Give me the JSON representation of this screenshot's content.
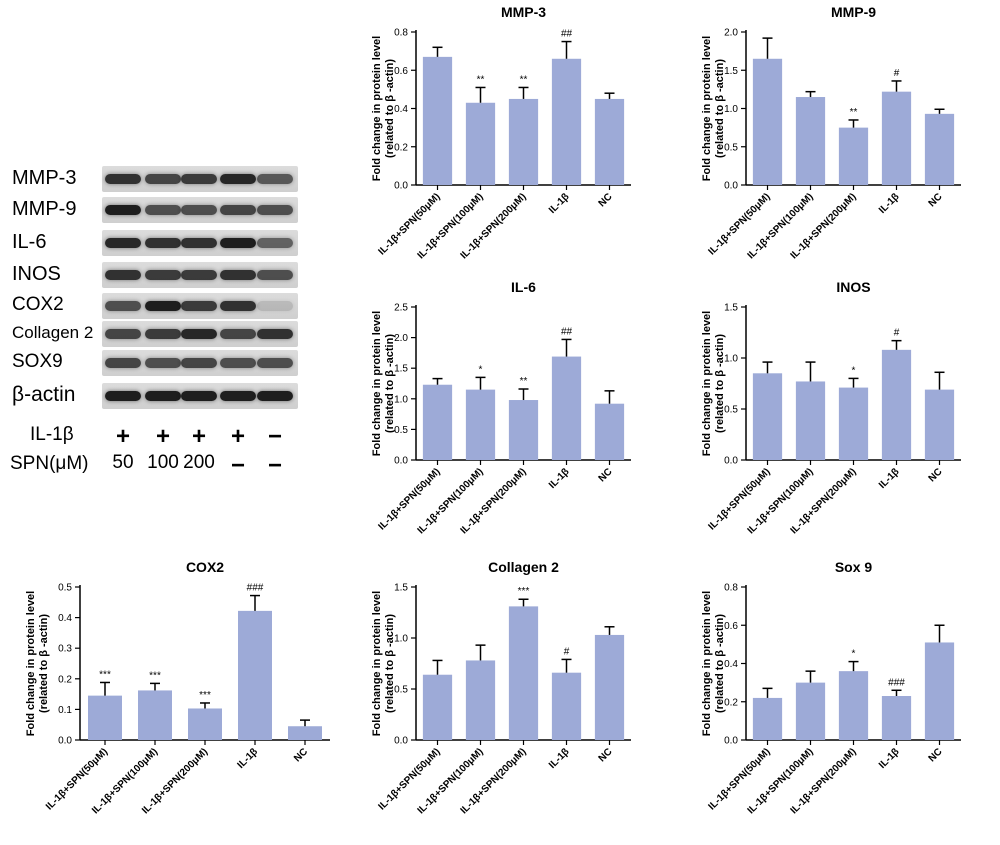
{
  "blot": {
    "proteins": [
      "MMP-3",
      "MMP-9",
      "IL-6",
      "INOS",
      "COX2",
      "Collagen 2",
      "SOX9",
      "β-actin"
    ],
    "treatment_rows": [
      {
        "label": "IL-1β",
        "values": [
          "+",
          "+",
          "+",
          "+",
          "−"
        ]
      },
      {
        "label": "SPN(μM)",
        "values": [
          "50",
          "100",
          "200",
          "−",
          "−"
        ]
      }
    ]
  },
  "colors": {
    "bar": "#9daad7",
    "text": "#000000"
  },
  "chart_data": [
    {
      "type": "bar",
      "title": "MMP-3",
      "ylabel": "Fold change in protein level\n(related to β -actin)",
      "ylim": [
        0,
        0.8
      ],
      "yticks": [
        "0.0",
        "0.2",
        "0.4",
        "0.6",
        "0.8"
      ],
      "categories": [
        "IL-1β+SPN(50μM)",
        "IL-1β+SPN(100μM)",
        "IL-1β+SPN(200μM)",
        "IL-1β",
        "NC"
      ],
      "values": [
        0.67,
        0.43,
        0.45,
        0.66,
        0.45
      ],
      "errors": [
        0.05,
        0.08,
        0.06,
        0.09,
        0.03
      ],
      "annotations": [
        "",
        "**",
        "**",
        "##",
        ""
      ]
    },
    {
      "type": "bar",
      "title": "MMP-9",
      "ylabel": "Fold change in protein level\n(related to β -actin)",
      "ylim": [
        0,
        2.0
      ],
      "yticks": [
        "0.0",
        "0.5",
        "1.0",
        "1.5",
        "2.0"
      ],
      "categories": [
        "IL-1β+SPN(50μM)",
        "IL-1β+SPN(100μM)",
        "IL-1β+SPN(200μM)",
        "IL-1β",
        "NC"
      ],
      "values": [
        1.65,
        1.15,
        0.75,
        1.22,
        0.93
      ],
      "errors": [
        0.27,
        0.07,
        0.1,
        0.14,
        0.06
      ],
      "annotations": [
        "",
        "",
        "**",
        "#",
        ""
      ]
    },
    {
      "type": "bar",
      "title": "IL-6",
      "ylabel": "Fold change in protein level\n(related to β -actin)",
      "ylim": [
        0,
        2.5
      ],
      "yticks": [
        "0.0",
        "0.5",
        "1.0",
        "1.5",
        "2.0",
        "2.5"
      ],
      "categories": [
        "IL-1β+SPN(50μM)",
        "IL-1β+SPN(100μM)",
        "IL-1β+SPN(200μM)",
        "IL-1β",
        "NC"
      ],
      "values": [
        1.23,
        1.15,
        0.98,
        1.69,
        0.92
      ],
      "errors": [
        0.1,
        0.2,
        0.18,
        0.28,
        0.21
      ],
      "annotations": [
        "",
        "*",
        "**",
        "##",
        ""
      ]
    },
    {
      "type": "bar",
      "title": "INOS",
      "ylabel": "Fold change in protein level\n(related to β -actin)",
      "ylim": [
        0,
        1.5
      ],
      "yticks": [
        "0.0",
        "0.5",
        "1.0",
        "1.5"
      ],
      "categories": [
        "IL-1β+SPN(50μM)",
        "IL-1β+SPN(100μM)",
        "IL-1β+SPN(200μM)",
        "IL-1β",
        "NC"
      ],
      "values": [
        0.85,
        0.77,
        0.71,
        1.08,
        0.69
      ],
      "errors": [
        0.11,
        0.19,
        0.09,
        0.09,
        0.17
      ],
      "annotations": [
        "",
        "",
        "*",
        "#",
        ""
      ]
    },
    {
      "type": "bar",
      "title": "COX2",
      "ylabel": "Fold change in protein level\n(related to β -actin)",
      "ylim": [
        0,
        0.5
      ],
      "yticks": [
        "0.0",
        "0.1",
        "0.2",
        "0.3",
        "0.4",
        "0.5"
      ],
      "categories": [
        "IL-1β+SPN(50μM)",
        "IL-1β+SPN(100μM)",
        "IL-1β+SPN(200μM)",
        "IL-1β",
        "NC"
      ],
      "values": [
        0.145,
        0.162,
        0.103,
        0.422,
        0.045
      ],
      "errors": [
        0.043,
        0.023,
        0.018,
        0.05,
        0.02
      ],
      "annotations": [
        "***",
        "***",
        "***",
        "###",
        ""
      ]
    },
    {
      "type": "bar",
      "title": "Collagen 2",
      "ylabel": "Fold change in protein level\n(related to β -actin)",
      "ylim": [
        0,
        1.5
      ],
      "yticks": [
        "0.0",
        "0.5",
        "1.0",
        "1.5"
      ],
      "categories": [
        "IL-1β+SPN(50μM)",
        "IL-1β+SPN(100μM)",
        "IL-1β+SPN(200μM)",
        "IL-1β",
        "NC"
      ],
      "values": [
        0.64,
        0.78,
        1.31,
        0.66,
        1.03
      ],
      "errors": [
        0.14,
        0.15,
        0.07,
        0.13,
        0.08
      ],
      "annotations": [
        "",
        "",
        "***",
        "#",
        ""
      ]
    },
    {
      "type": "bar",
      "title": "Sox 9",
      "ylabel": "Fold change in protein level\n(related to β -actin)",
      "ylim": [
        0,
        0.8
      ],
      "yticks": [
        "0.0",
        "0.2",
        "0.4",
        "0.6",
        "0.8"
      ],
      "categories": [
        "IL-1β+SPN(50μM)",
        "IL-1β+SPN(100μM)",
        "IL-1β+SPN(200μM)",
        "IL-1β",
        "NC"
      ],
      "values": [
        0.22,
        0.3,
        0.36,
        0.23,
        0.51
      ],
      "errors": [
        0.05,
        0.06,
        0.05,
        0.03,
        0.09
      ],
      "annotations": [
        "",
        "",
        "*",
        "###",
        ""
      ]
    }
  ]
}
